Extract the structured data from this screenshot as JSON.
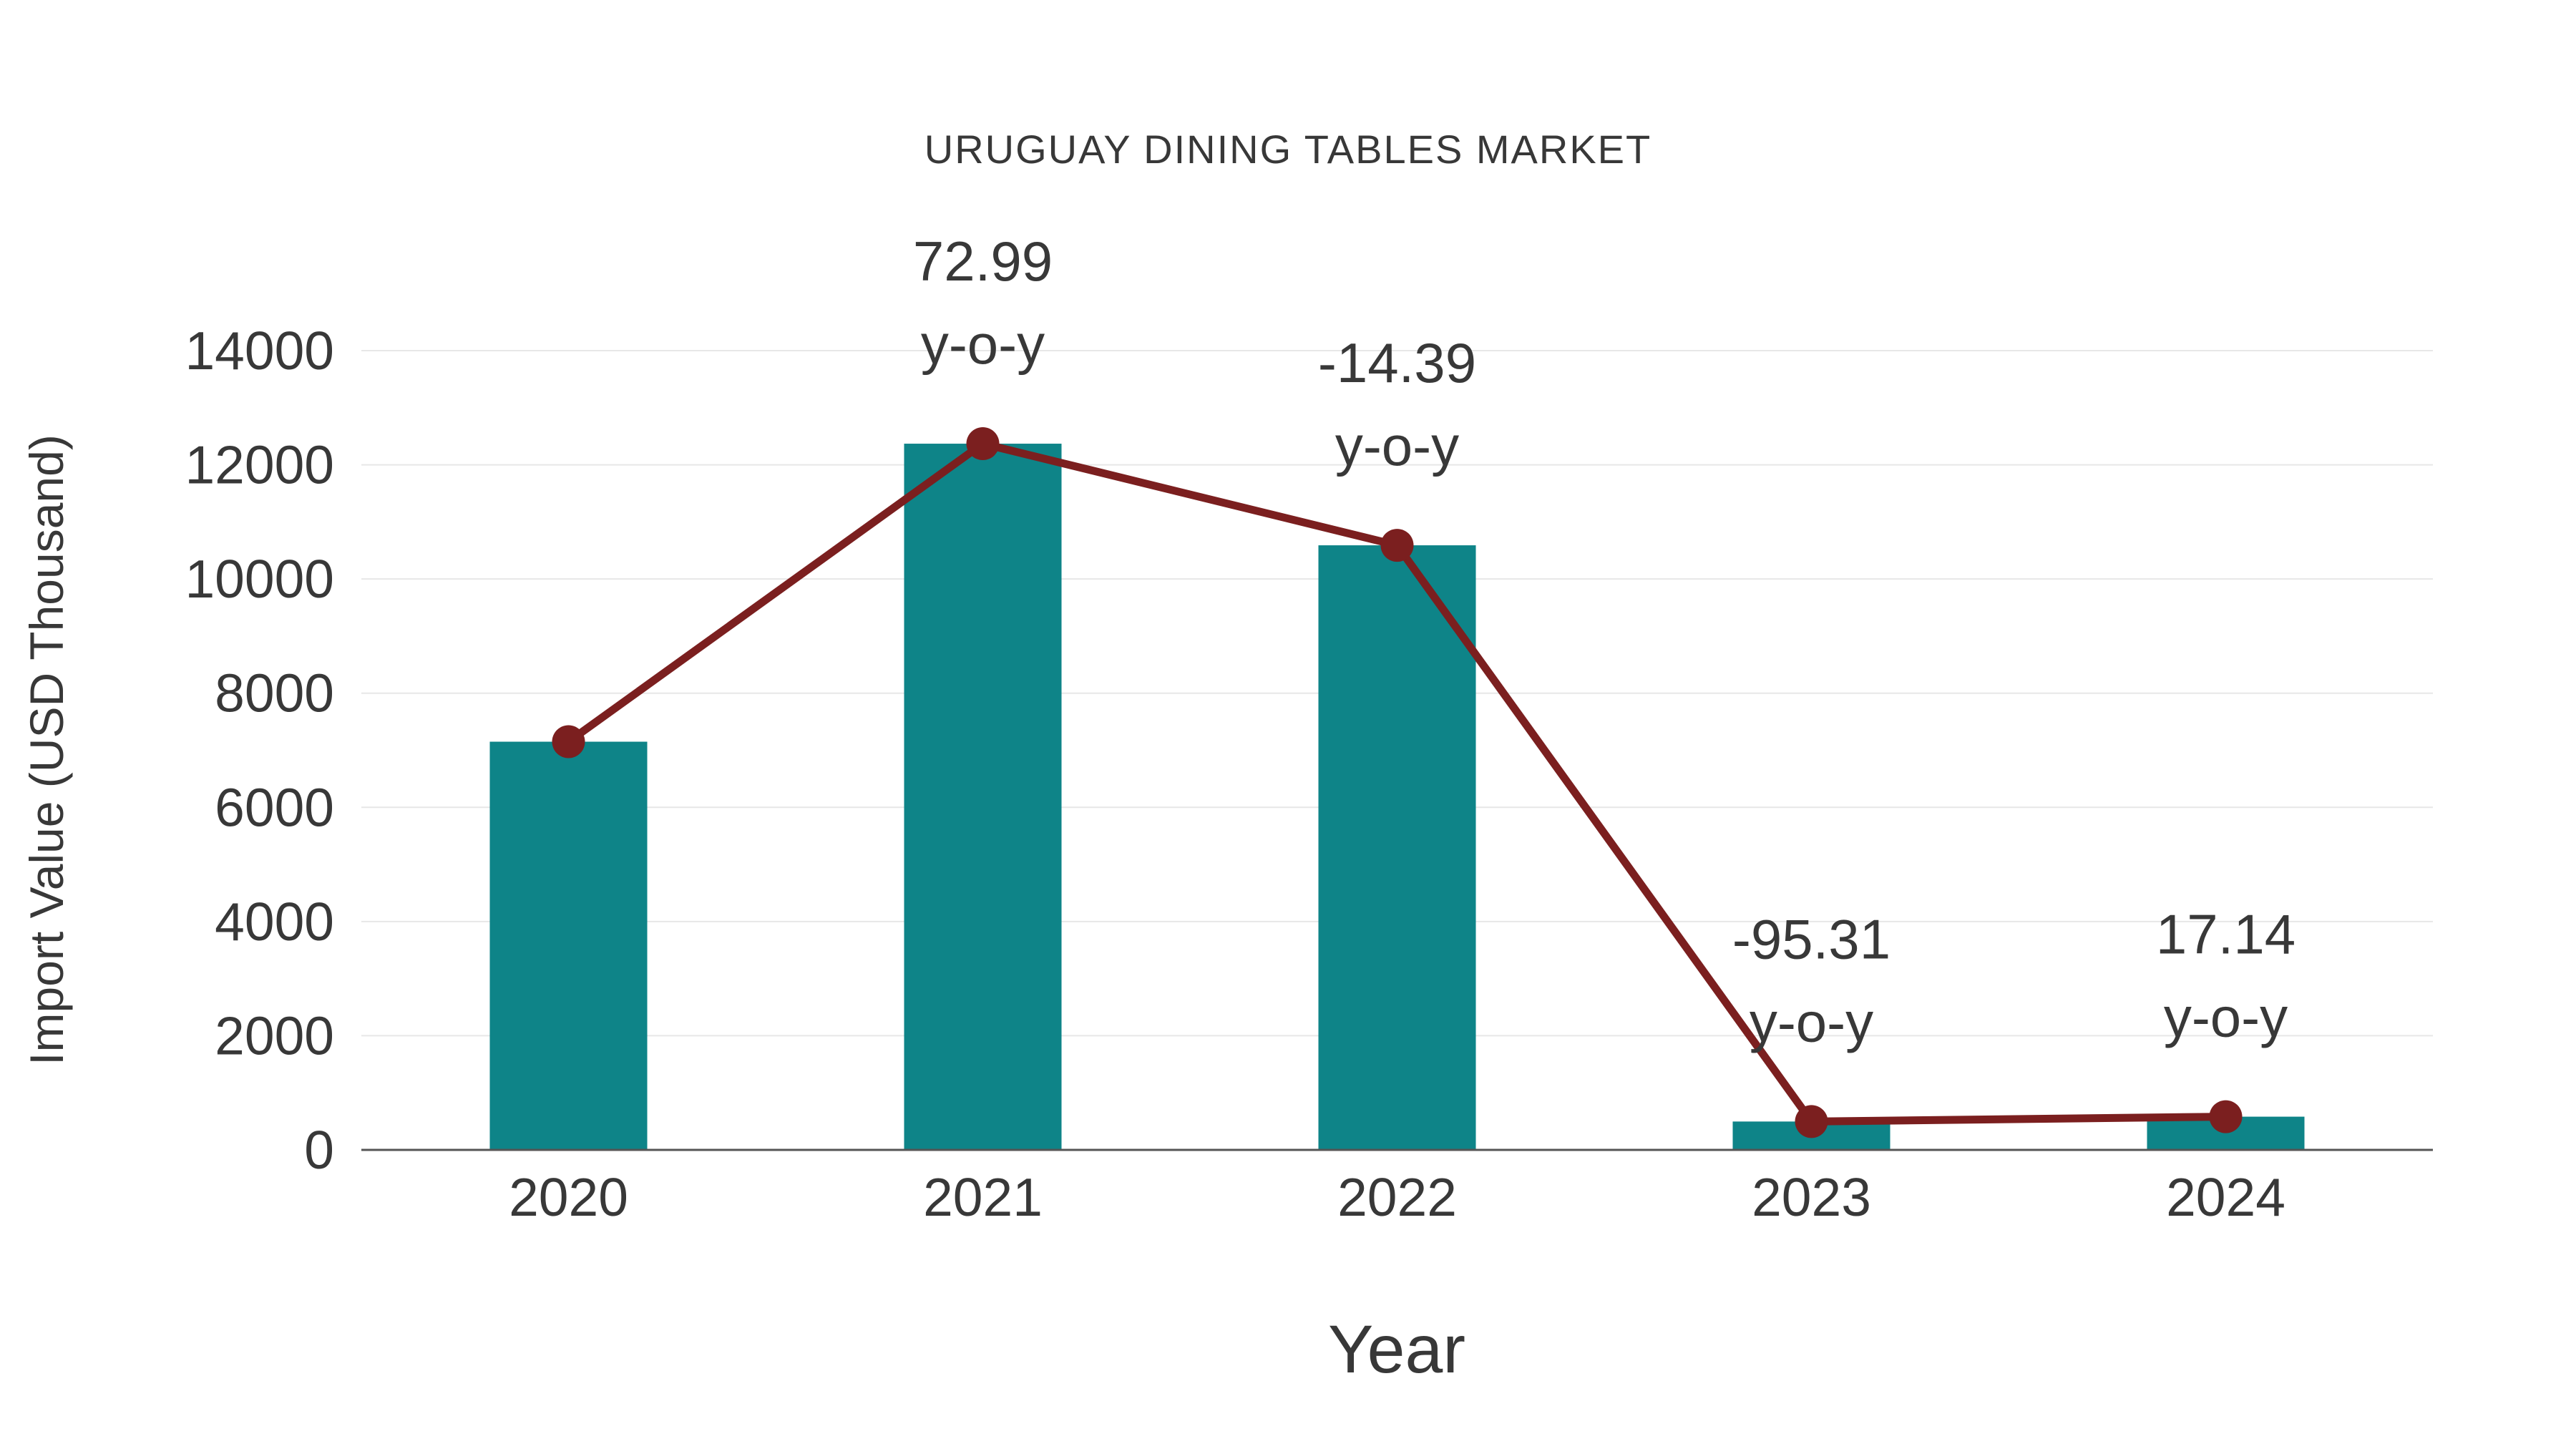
{
  "chart_data": {
    "type": "bar",
    "title": "URUGUAY DINING TABLES MARKET",
    "xlabel": "Year",
    "ylabel": "Import Value (USD Thousand)",
    "categories": [
      "2020",
      "2021",
      "2022",
      "2023",
      "2024"
    ],
    "series": [
      {
        "name": "Import Value (USD Thousand)",
        "type": "bar",
        "color": "#0E8488",
        "values": [
          7150,
          12370,
          10590,
          497,
          582
        ]
      },
      {
        "name": "Import Value trend",
        "type": "line",
        "color": "#7B1F1F",
        "values": [
          7150,
          12370,
          10590,
          497,
          582
        ]
      }
    ],
    "annotations": [
      {
        "category": "2021",
        "lines": [
          "72.99",
          "y-o-y"
        ]
      },
      {
        "category": "2022",
        "lines": [
          "-14.39",
          "y-o-y"
        ]
      },
      {
        "category": "2023",
        "lines": [
          "-95.31",
          "y-o-y"
        ]
      },
      {
        "category": "2024",
        "lines": [
          "17.14",
          "y-o-y"
        ]
      }
    ],
    "ylim": [
      0,
      14000
    ],
    "yticks": [
      0,
      2000,
      4000,
      6000,
      8000,
      10000,
      12000,
      14000
    ],
    "grid": true,
    "legend": "none",
    "colors": {
      "bar": "#0E8488",
      "line": "#7B1F1F",
      "grid": "#E7E7E7",
      "axis": "#555555",
      "text": "#383838"
    }
  }
}
